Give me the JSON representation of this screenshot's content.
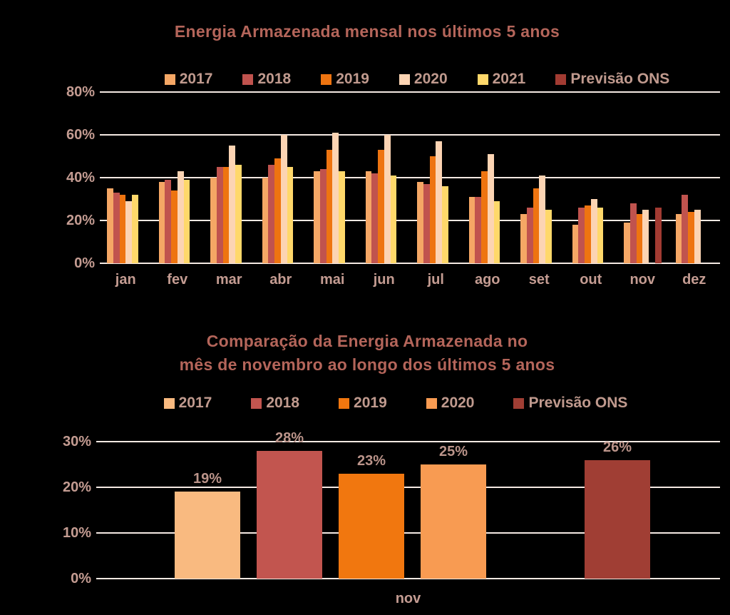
{
  "page": {
    "background": "#000000"
  },
  "colors": {
    "background": "#000000",
    "title_text": "#b4655a",
    "legend_text": "#c09a8e",
    "axis_text": "#c49c92",
    "data_label_text": "#bb948a",
    "gridline": "#f4e9e3"
  },
  "charts": {
    "top": {
      "title": "Energia Armazenada mensal nos últimos 5 anos",
      "legend_labels": [
        "2017",
        "2018",
        "2019",
        "2020",
        "2021",
        "Previsão ONS"
      ],
      "y_tick_labels": [
        "80%",
        "60%",
        "40%",
        "20%",
        "0%"
      ]
    },
    "bottom": {
      "title_lines": [
        "Comparação da Energia Armazenada no",
        "mês de novembro ao longo dos últimos 5 anos"
      ],
      "legend_labels": [
        "2017",
        "2018",
        "2019",
        "2020",
        "Previsão ONS"
      ],
      "y_tick_labels": [
        "30%",
        "20%",
        "10%",
        "0%"
      ],
      "x_label": "nov"
    }
  },
  "chart_data": [
    {
      "type": "bar",
      "title": "Energia Armazenada mensal nos últimos 5 anos",
      "categories": [
        "jan",
        "fev",
        "mar",
        "abr",
        "mai",
        "jun",
        "jul",
        "ago",
        "set",
        "out",
        "nov",
        "dez"
      ],
      "series": [
        {
          "name": "2017",
          "color": "#f5a765",
          "values": [
            35,
            38,
            40,
            40,
            43,
            43,
            38,
            31,
            23,
            18,
            19,
            23
          ]
        },
        {
          "name": "2018",
          "color": "#c0534e",
          "values": [
            33,
            39,
            45,
            46,
            44,
            42,
            37,
            31,
            26,
            26,
            28,
            32
          ]
        },
        {
          "name": "2019",
          "color": "#ee7410",
          "values": [
            32,
            34,
            45,
            49,
            53,
            53,
            50,
            43,
            35,
            27,
            23,
            24
          ]
        },
        {
          "name": "2020",
          "color": "#fcd4b3",
          "values": [
            29,
            43,
            55,
            60,
            61,
            60,
            57,
            51,
            41,
            30,
            25,
            25
          ]
        },
        {
          "name": "2021",
          "color": "#ffd86a",
          "values": [
            32,
            39,
            46,
            45,
            43,
            41,
            36,
            29,
            25,
            26,
            null,
            null
          ]
        },
        {
          "name": "Previsão ONS",
          "color": "#a23b32",
          "values": [
            null,
            null,
            null,
            null,
            null,
            null,
            null,
            null,
            null,
            null,
            26,
            null
          ]
        }
      ],
      "ylabel": "",
      "xlabel": "",
      "ylim": [
        0,
        80
      ],
      "yticks": [
        0,
        20,
        40,
        60,
        80
      ],
      "grid": true,
      "legend_position": "top-center"
    },
    {
      "type": "bar",
      "title": "Comparação da Energia Armazenada no mês de novembro ao longo dos últimos 5 anos",
      "categories": [
        "nov"
      ],
      "slot_count": 6,
      "series": [
        {
          "name": "2017",
          "color": "#f9ba80",
          "value": 19,
          "label": "19%",
          "slot": 0
        },
        {
          "name": "2018",
          "color": "#c2554f",
          "value": 28,
          "label": "28%",
          "slot": 1
        },
        {
          "name": "2019",
          "color": "#f1770f",
          "value": 23,
          "label": "23%",
          "slot": 2
        },
        {
          "name": "2020",
          "color": "#f89b52",
          "value": 25,
          "label": "25%",
          "slot": 3
        },
        {
          "name": "Previsão ONS",
          "color": "#a03e34",
          "value": 26,
          "label": "26%",
          "slot": 5
        }
      ],
      "ylabel": "",
      "xlabel": "nov",
      "ylim": [
        0,
        30
      ],
      "yticks": [
        0,
        10,
        20,
        30
      ],
      "grid": true,
      "legend_position": "top-center",
      "data_labels": [
        "19%",
        "28%",
        "23%",
        "25%",
        "26%"
      ]
    }
  ]
}
